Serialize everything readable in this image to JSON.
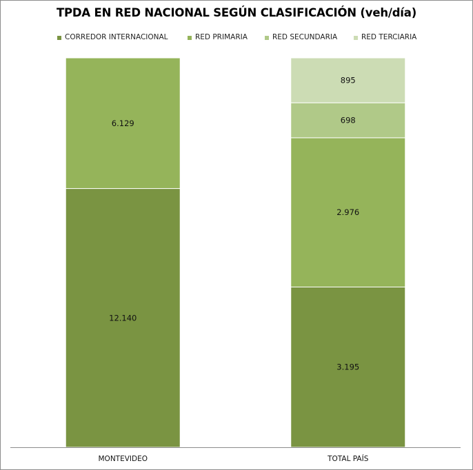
{
  "chart_data": {
    "type": "bar",
    "stacked": true,
    "percent_stacked": true,
    "title": "TPDA EN RED NACIONAL SEGÚN CLASIFICACIÓN (veh/día)",
    "categories": [
      "MONTEVIDEO",
      "TOTAL PAÍS"
    ],
    "series": [
      {
        "name": "CORREDOR INTERNACIONAL",
        "values": [
          12140,
          3195
        ],
        "labels": [
          "12.140",
          "3.195"
        ],
        "color": "#7a9442"
      },
      {
        "name": "RED PRIMARIA",
        "values": [
          6129,
          2976
        ],
        "labels": [
          "6.129",
          "2.976"
        ],
        "color": "#95b45a"
      },
      {
        "name": "RED SECUNDARIA",
        "values": [
          0,
          698
        ],
        "labels": [
          "",
          "698"
        ],
        "color": "#b0c988"
      },
      {
        "name": "RED TERCIARIA",
        "values": [
          0,
          895
        ],
        "labels": [
          "",
          "895"
        ],
        "color": "#ccdcb4"
      }
    ],
    "legend_position": "top",
    "grid": false
  }
}
